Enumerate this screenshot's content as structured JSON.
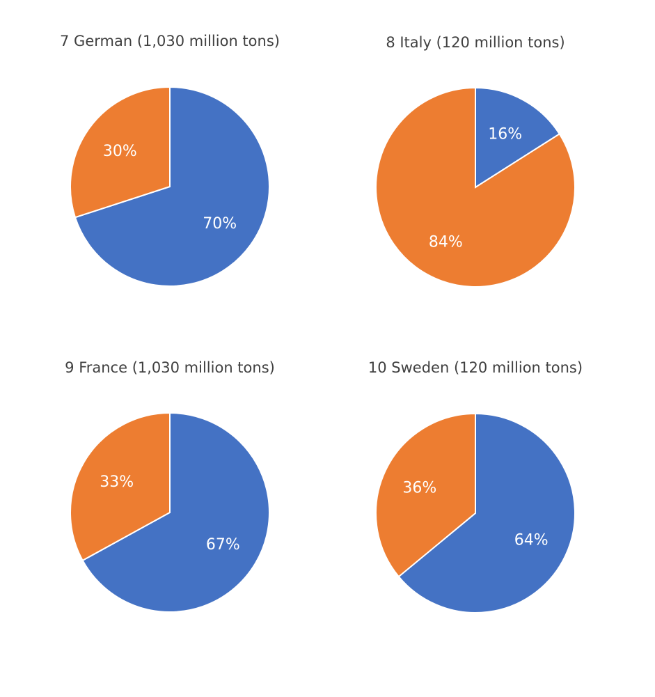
{
  "colors": {
    "blue": "#4472C4",
    "orange": "#ED7D31"
  },
  "chart_data": [
    {
      "type": "pie",
      "title": "7 German (1,030 million tons)",
      "slices": [
        {
          "value": 70,
          "label": "70%",
          "color": "blue"
        },
        {
          "value": 30,
          "label": "30%",
          "color": "orange"
        }
      ]
    },
    {
      "type": "pie",
      "title": "8 Italy (120 million tons)",
      "slices": [
        {
          "value": 16,
          "label": "16%",
          "color": "blue"
        },
        {
          "value": 84,
          "label": "84%",
          "color": "orange"
        }
      ]
    },
    {
      "type": "pie",
      "title": "9 France (1,030 million tons)",
      "slices": [
        {
          "value": 67,
          "label": "67%",
          "color": "blue"
        },
        {
          "value": 33,
          "label": "33%",
          "color": "orange"
        }
      ]
    },
    {
      "type": "pie",
      "title": "10 Sweden (120 million tons)",
      "slices": [
        {
          "value": 64,
          "label": "64%",
          "color": "blue"
        },
        {
          "value": 36,
          "label": "36%",
          "color": "orange"
        }
      ]
    }
  ]
}
